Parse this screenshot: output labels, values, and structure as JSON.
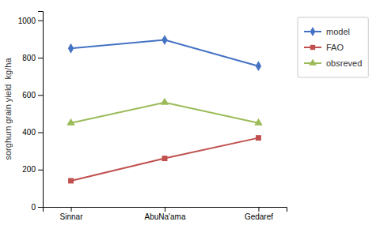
{
  "chart_data": {
    "type": "line",
    "categories": [
      "Sinnar",
      "AbuNa'ama",
      "Gedaref"
    ],
    "series": [
      {
        "name": "model",
        "color": "#4472C4",
        "marker": "diamond",
        "values": [
          850,
          895,
          755
        ]
      },
      {
        "name": "FAO",
        "color": "#C0504D",
        "marker": "square",
        "values": [
          140,
          260,
          370
        ]
      },
      {
        "name": "obsreved",
        "color": "#9BBB59",
        "marker": "triangle",
        "values": [
          450,
          560,
          450
        ]
      }
    ],
    "ylabel": "sorghum grain yield  kg/ha",
    "ylim": [
      0,
      1050
    ],
    "yticks": [
      0,
      200,
      400,
      600,
      800,
      1000
    ],
    "grid": false,
    "legend": "right"
  }
}
